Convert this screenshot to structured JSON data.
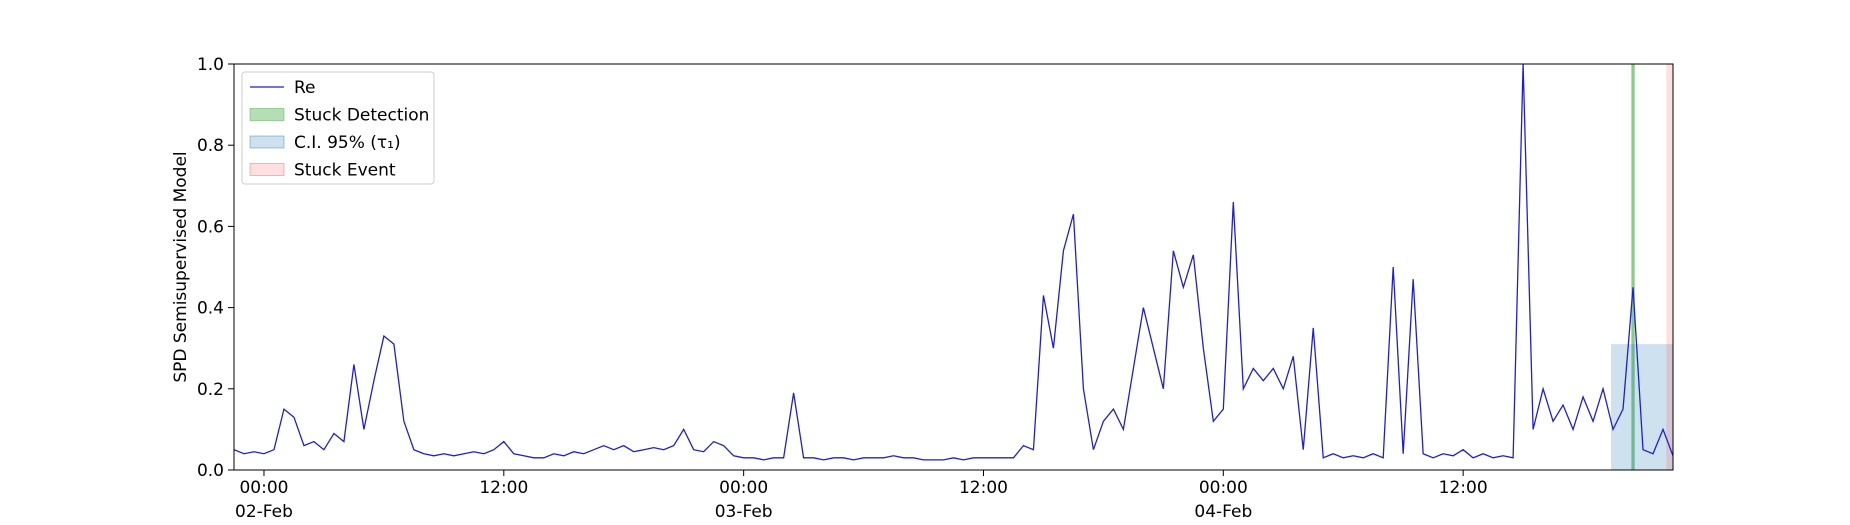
{
  "chart_data": {
    "type": "line",
    "ylabel": "SPD Semisupervised Model",
    "x": [
      "1900-02-01 22:30",
      "1900-02-01 23:00",
      "1900-02-01 23:30",
      "1900-02-02 00:00",
      "1900-02-02 00:30",
      "1900-02-02 01:00",
      "1900-02-02 01:30",
      "1900-02-02 02:00",
      "1900-02-02 02:30",
      "1900-02-02 03:00",
      "1900-02-02 03:30",
      "1900-02-02 04:00",
      "1900-02-02 04:30",
      "1900-02-02 05:00",
      "1900-02-02 05:30",
      "1900-02-02 06:00",
      "1900-02-02 06:30",
      "1900-02-02 07:00",
      "1900-02-02 07:30",
      "1900-02-02 08:00",
      "1900-02-02 08:30",
      "1900-02-02 09:00",
      "1900-02-02 09:30",
      "1900-02-02 10:00",
      "1900-02-02 10:30",
      "1900-02-02 11:00",
      "1900-02-02 11:30",
      "1900-02-02 12:00",
      "1900-02-02 12:30",
      "1900-02-02 13:00",
      "1900-02-02 13:30",
      "1900-02-02 14:00",
      "1900-02-02 14:30",
      "1900-02-02 15:00",
      "1900-02-02 15:30",
      "1900-02-02 16:00",
      "1900-02-02 16:30",
      "1900-02-02 17:00",
      "1900-02-02 17:30",
      "1900-02-02 18:00",
      "1900-02-02 18:30",
      "1900-02-02 19:00",
      "1900-02-02 19:30",
      "1900-02-02 20:00",
      "1900-02-02 20:30",
      "1900-02-02 21:00",
      "1900-02-02 21:30",
      "1900-02-02 22:00",
      "1900-02-02 22:30",
      "1900-02-02 23:00",
      "1900-02-02 23:30",
      "1900-02-03 00:00",
      "1900-02-03 00:30",
      "1900-02-03 01:00",
      "1900-02-03 01:30",
      "1900-02-03 02:00",
      "1900-02-03 02:30",
      "1900-02-03 03:00",
      "1900-02-03 03:30",
      "1900-02-03 04:00",
      "1900-02-03 04:30",
      "1900-02-03 05:00",
      "1900-02-03 05:30",
      "1900-02-03 06:00",
      "1900-02-03 06:30",
      "1900-02-03 07:00",
      "1900-02-03 07:30",
      "1900-02-03 08:00",
      "1900-02-03 08:30",
      "1900-02-03 09:00",
      "1900-02-03 09:30",
      "1900-02-03 10:00",
      "1900-02-03 10:30",
      "1900-02-03 11:00",
      "1900-02-03 11:30",
      "1900-02-03 12:00",
      "1900-02-03 12:30",
      "1900-02-03 13:00",
      "1900-02-03 13:30",
      "1900-02-03 14:00",
      "1900-02-03 14:30",
      "1900-02-03 15:00",
      "1900-02-03 15:30",
      "1900-02-03 16:00",
      "1900-02-03 16:30",
      "1900-02-03 17:00",
      "1900-02-03 17:30",
      "1900-02-03 18:00",
      "1900-02-03 18:30",
      "1900-02-03 19:00",
      "1900-02-03 19:30",
      "1900-02-03 20:00",
      "1900-02-03 20:30",
      "1900-02-03 21:00",
      "1900-02-03 21:30",
      "1900-02-03 22:00",
      "1900-02-03 22:30",
      "1900-02-03 23:00",
      "1900-02-03 23:30",
      "1900-02-04 00:00",
      "1900-02-04 00:30",
      "1900-02-04 01:00",
      "1900-02-04 01:30",
      "1900-02-04 02:00",
      "1900-02-04 02:30",
      "1900-02-04 03:00",
      "1900-02-04 03:30",
      "1900-02-04 04:00",
      "1900-02-04 04:30",
      "1900-02-04 05:00",
      "1900-02-04 05:30",
      "1900-02-04 06:00",
      "1900-02-04 06:30",
      "1900-02-04 07:00",
      "1900-02-04 07:30",
      "1900-02-04 08:00",
      "1900-02-04 08:30",
      "1900-02-04 09:00",
      "1900-02-04 09:30",
      "1900-02-04 10:00",
      "1900-02-04 10:30",
      "1900-02-04 11:00",
      "1900-02-04 11:30",
      "1900-02-04 12:00",
      "1900-02-04 12:30",
      "1900-02-04 13:00",
      "1900-02-04 13:30",
      "1900-02-04 14:00",
      "1900-02-04 14:30",
      "1900-02-04 15:00",
      "1900-02-04 15:30",
      "1900-02-04 16:00",
      "1900-02-04 16:30",
      "1900-02-04 17:00",
      "1900-02-04 17:30",
      "1900-02-04 18:00",
      "1900-02-04 18:30",
      "1900-02-04 19:00",
      "1900-02-04 19:30",
      "1900-02-04 20:00",
      "1900-02-04 20:30",
      "1900-02-04 21:00",
      "1900-02-04 21:30",
      "1900-02-04 22:00",
      "1900-02-04 22:30"
    ],
    "series": [
      {
        "name": "Re",
        "color": "#1f1fd1",
        "values": [
          0.05,
          0.04,
          0.045,
          0.04,
          0.05,
          0.15,
          0.13,
          0.06,
          0.07,
          0.05,
          0.09,
          0.07,
          0.26,
          0.1,
          0.22,
          0.33,
          0.31,
          0.12,
          0.05,
          0.04,
          0.035,
          0.04,
          0.035,
          0.04,
          0.045,
          0.04,
          0.05,
          0.07,
          0.04,
          0.035,
          0.03,
          0.03,
          0.04,
          0.035,
          0.045,
          0.04,
          0.05,
          0.06,
          0.05,
          0.06,
          0.045,
          0.05,
          0.055,
          0.05,
          0.06,
          0.1,
          0.05,
          0.045,
          0.07,
          0.06,
          0.035,
          0.03,
          0.03,
          0.025,
          0.03,
          0.03,
          0.19,
          0.03,
          0.03,
          0.025,
          0.03,
          0.03,
          0.025,
          0.03,
          0.03,
          0.03,
          0.035,
          0.03,
          0.03,
          0.025,
          0.025,
          0.025,
          0.03,
          0.025,
          0.03,
          0.03,
          0.03,
          0.03,
          0.03,
          0.06,
          0.05,
          0.43,
          0.3,
          0.54,
          0.63,
          0.2,
          0.05,
          0.12,
          0.15,
          0.1,
          0.25,
          0.4,
          0.3,
          0.2,
          0.54,
          0.45,
          0.53,
          0.3,
          0.12,
          0.15,
          0.66,
          0.2,
          0.25,
          0.22,
          0.25,
          0.2,
          0.28,
          0.05,
          0.35,
          0.03,
          0.04,
          0.03,
          0.035,
          0.03,
          0.04,
          0.03,
          0.5,
          0.04,
          0.47,
          0.04,
          0.03,
          0.04,
          0.035,
          0.05,
          0.03,
          0.04,
          0.03,
          0.035,
          0.03,
          1.0,
          0.1,
          0.2,
          0.12,
          0.16,
          0.1,
          0.18,
          0.12,
          0.2,
          0.1,
          0.15,
          0.45,
          0.05,
          0.04,
          0.1,
          0.035
        ]
      }
    ],
    "spans": [
      {
        "name": "Stuck Detection",
        "color": "#2ca02c",
        "x": [
          "1900-02-04 20:25",
          "1900-02-04 20:35"
        ]
      },
      {
        "name": "C.I. 95% (τ₁)",
        "color": "#1f77b4",
        "x": [
          "1900-02-04 19:24",
          "1900-02-04 22:30"
        ],
        "y": [
          0,
          0.31
        ]
      },
      {
        "name": "Stuck Event",
        "color": "#ff4d4d",
        "x": [
          "1900-02-04 22:10",
          "1900-02-04 22:30"
        ]
      }
    ],
    "xlim": [
      "1900-02-01 22:30",
      "1900-02-04 22:30"
    ],
    "xticks": [
      {
        "value": "1900-02-02 00:00",
        "label": "00:00\n02-Feb\n1900"
      },
      {
        "value": "1900-02-02 12:00",
        "label": "12:00"
      },
      {
        "value": "1900-02-03 00:00",
        "label": "00:00\n03-Feb"
      },
      {
        "value": "1900-02-03 12:00",
        "label": "12:00"
      },
      {
        "value": "1900-02-04 00:00",
        "label": "00:00\n04-Feb"
      },
      {
        "value": "1900-02-04 12:00",
        "label": "12:00"
      }
    ],
    "ylim": [
      0,
      1
    ],
    "yticks": [
      {
        "value": 0,
        "label": "0.0"
      },
      0.2,
      0.4,
      0.6,
      0.8,
      {
        "value": 1,
        "label": "1.0"
      }
    ],
    "legend": "upper left"
  }
}
